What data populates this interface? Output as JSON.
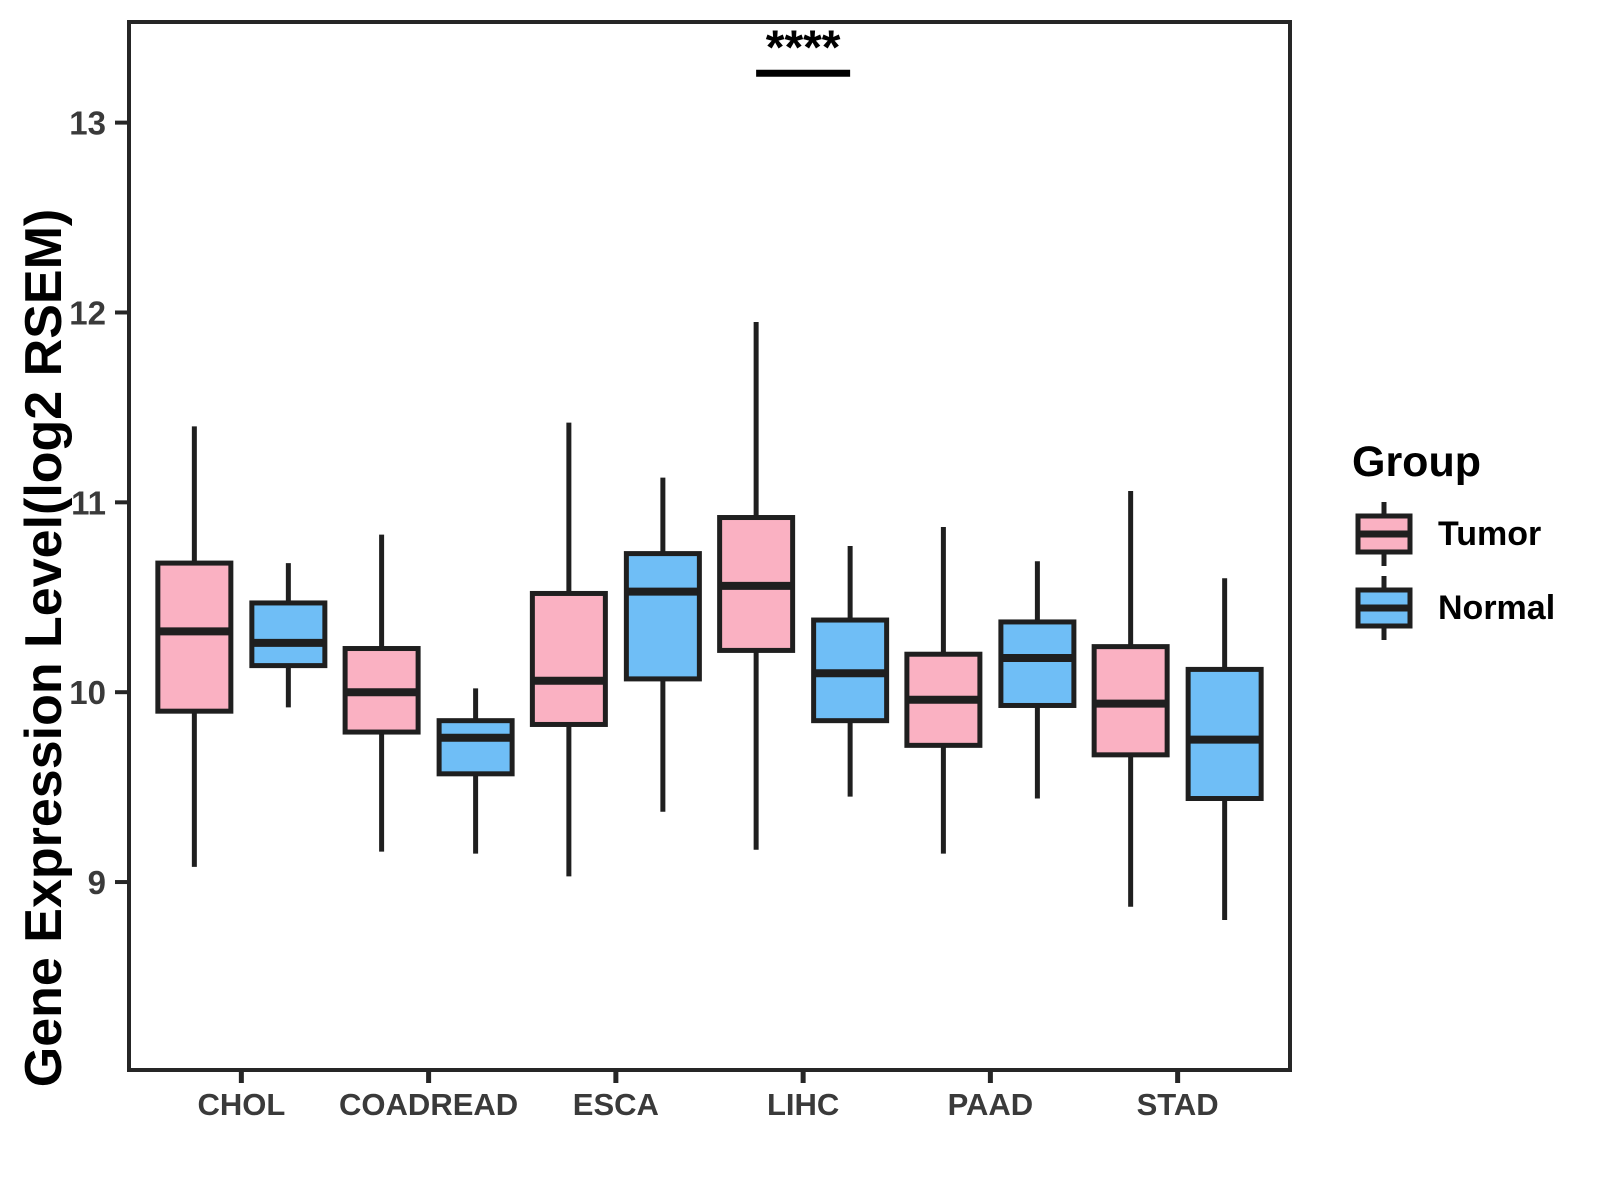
{
  "chart_data": {
    "type": "boxplot",
    "title": "",
    "xlabel": "",
    "ylabel": "Gene Expression Level(log2 RSEM)",
    "categories": [
      "CHOL",
      "COADREAD",
      "ESCA",
      "LIHC",
      "PAAD",
      "STAD"
    ],
    "y_ticks": [
      9,
      10,
      11,
      12,
      13
    ],
    "ylim": [
      8.01,
      13.53
    ],
    "grid": false,
    "legend_position": "right",
    "series": [
      {
        "name": "Tumor",
        "color": "#FAB1C2",
        "boxes": [
          {
            "category": "CHOL",
            "low": 9.08,
            "q1": 9.9,
            "median": 10.32,
            "q3": 10.68,
            "high": 11.4
          },
          {
            "category": "COADREAD",
            "low": 9.16,
            "q1": 9.79,
            "median": 10.0,
            "q3": 10.23,
            "high": 10.83
          },
          {
            "category": "ESCA",
            "low": 9.03,
            "q1": 9.83,
            "median": 10.06,
            "q3": 10.52,
            "high": 11.42
          },
          {
            "category": "LIHC",
            "low": 9.17,
            "q1": 10.22,
            "median": 10.56,
            "q3": 10.92,
            "high": 11.95
          },
          {
            "category": "PAAD",
            "low": 9.15,
            "q1": 9.72,
            "median": 9.96,
            "q3": 10.2,
            "high": 10.87
          },
          {
            "category": "STAD",
            "low": 8.87,
            "q1": 9.67,
            "median": 9.94,
            "q3": 10.24,
            "high": 11.06
          }
        ]
      },
      {
        "name": "Normal",
        "color": "#6FBEF6",
        "boxes": [
          {
            "category": "CHOL",
            "low": 9.92,
            "q1": 10.14,
            "median": 10.26,
            "q3": 10.47,
            "high": 10.68
          },
          {
            "category": "COADREAD",
            "low": 9.15,
            "q1": 9.57,
            "median": 9.76,
            "q3": 9.85,
            "high": 10.02
          },
          {
            "category": "ESCA",
            "low": 9.37,
            "q1": 10.07,
            "median": 10.53,
            "q3": 10.73,
            "high": 11.13
          },
          {
            "category": "LIHC",
            "low": 9.45,
            "q1": 9.85,
            "median": 10.1,
            "q3": 10.38,
            "high": 10.77
          },
          {
            "category": "PAAD",
            "low": 9.44,
            "q1": 9.93,
            "median": 10.18,
            "q3": 10.37,
            "high": 10.69
          },
          {
            "category": "STAD",
            "low": 8.8,
            "q1": 9.44,
            "median": 9.75,
            "q3": 10.12,
            "high": 10.6
          }
        ]
      }
    ],
    "annotation": {
      "label": "****",
      "category": "LIHC",
      "category_index": 3,
      "bar_y": 13.26
    }
  },
  "legend": {
    "title": "Group",
    "items": [
      {
        "label": "Tumor",
        "color": "#FAB1C2"
      },
      {
        "label": "Normal",
        "color": "#6FBEF6"
      }
    ]
  },
  "style": {
    "tumor_color": "#FAB1C2",
    "normal_color": "#6FBEF6",
    "box_stroke": "#1F1F1F",
    "axis_line_color": "#262626",
    "axis_text_color": "#3A3A3A",
    "title_color": "#000000"
  }
}
